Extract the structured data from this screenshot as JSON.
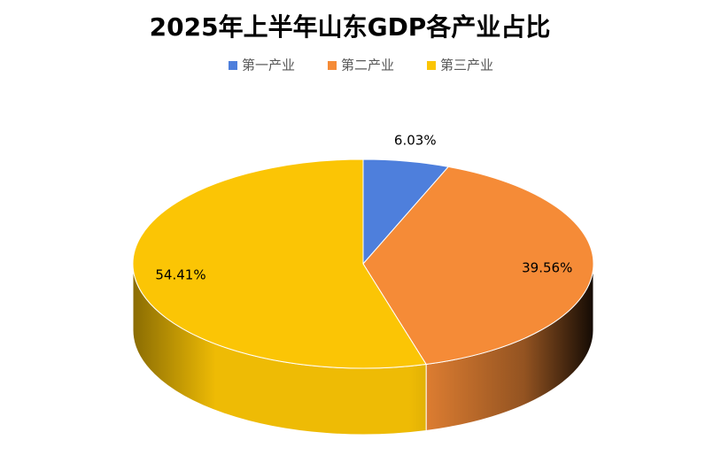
{
  "chart_data": {
    "type": "pie",
    "title": "2025年上半年山东GDP各产业占比",
    "legend": "top",
    "series": [
      {
        "name": "第一产业",
        "color": "#4e7fdc",
        "values": [
          6.03
        ],
        "value_labels": [
          "6.03%"
        ]
      },
      {
        "name": "第二产业",
        "color": "#f58b37",
        "values": [
          39.56
        ],
        "value_labels": [
          "39.56%"
        ]
      },
      {
        "name": "第三产业",
        "color": "#fbc505",
        "values": [
          54.41
        ],
        "value_labels": [
          "54.41%"
        ]
      }
    ]
  }
}
